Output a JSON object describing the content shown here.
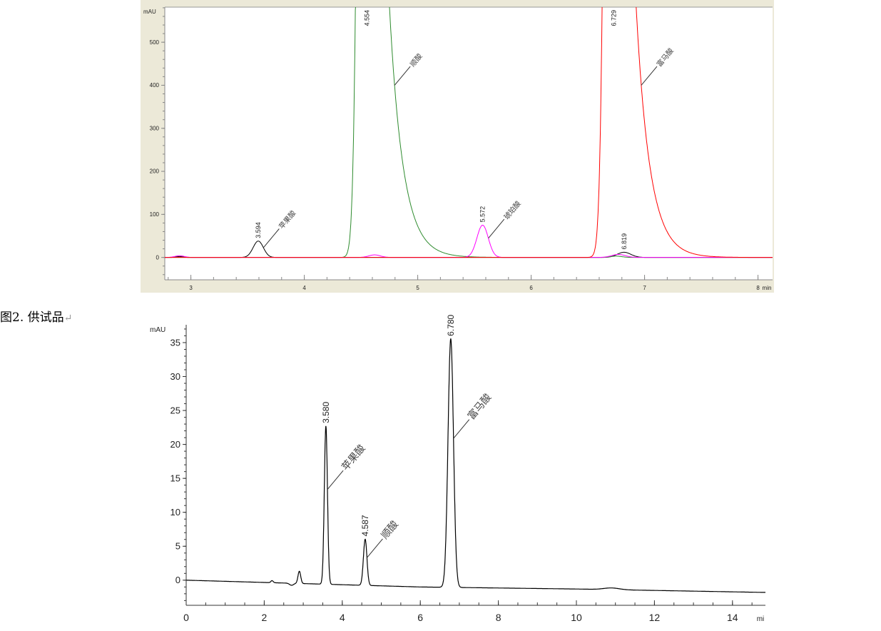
{
  "caption": {
    "text": "图2. 供试品",
    "mark": "↵"
  },
  "chart_data": [
    {
      "type": "line",
      "ylabel": "mAU",
      "xlabel": "min",
      "xlim": [
        2.77,
        8.13
      ],
      "ylim": [
        -52,
        582
      ],
      "xticks": [
        3,
        4,
        5,
        6,
        7,
        8
      ],
      "yticks": [
        0,
        100,
        200,
        300,
        400,
        500
      ],
      "grid": false,
      "background_frame": "#ece9d8",
      "series": [
        {
          "color": "#000000",
          "baseline": 0,
          "peaks": [
            {
              "rt": 2.9,
              "height": 2,
              "width": 0.03
            },
            {
              "rt": 3.594,
              "height": 38,
              "width": 0.045,
              "rt_label": "3.594",
              "name": "苹果酸"
            },
            {
              "rt": 6.819,
              "height": 12,
              "width": 0.06,
              "rt_label": "6.819"
            }
          ]
        },
        {
          "color": "#2e8b2e",
          "baseline": 0,
          "peaks": [
            {
              "rt": 4.554,
              "height": null,
              "width": 0.05,
              "tail": 0.12,
              "rt_label": "4.554",
              "name": "顺酸"
            },
            {
              "rt": 6.75,
              "height": 3,
              "width": 0.05
            }
          ]
        },
        {
          "color": "#ff00ff",
          "baseline": 0,
          "peaks": [
            {
              "rt": 2.9,
              "height": 4,
              "width": 0.04
            },
            {
              "rt": 4.62,
              "height": 6,
              "width": 0.05
            },
            {
              "rt": 5.572,
              "height": 75,
              "width": 0.05,
              "rt_label": "5.572",
              "name": "琥珀酸"
            },
            {
              "rt": 6.77,
              "height": 7,
              "width": 0.06
            }
          ]
        },
        {
          "color": "#ff0000",
          "baseline": 0,
          "peaks": [
            {
              "rt": 6.729,
              "height": null,
              "width": 0.05,
              "tail": 0.12,
              "rt_label": "6.729",
              "name": "富马酸"
            }
          ]
        }
      ]
    },
    {
      "type": "line",
      "ylabel": "mAU",
      "xlabel": "mi",
      "xlim": [
        0,
        14.85
      ],
      "ylim": [
        -3.7,
        37.6
      ],
      "xticks": [
        0,
        2,
        4,
        6,
        8,
        10,
        12,
        14
      ],
      "yticks": [
        0,
        5,
        10,
        15,
        20,
        25,
        30,
        35
      ],
      "grid": false,
      "series": [
        {
          "color": "#000000",
          "baseline": [
            [
              0,
              0
            ],
            [
              3,
              -0.5
            ],
            [
              6,
              -1.0
            ],
            [
              10,
              -1.3
            ],
            [
              14.8,
              -1.8
            ]
          ],
          "peaks": [
            {
              "rt": 2.2,
              "height": 0.3,
              "width": 0.03
            },
            {
              "rt": 2.7,
              "height": -0.3,
              "width": 0.05
            },
            {
              "rt": 2.9,
              "height": 1.8,
              "width": 0.035
            },
            {
              "rt": 3.58,
              "height": 23.3,
              "width": 0.04,
              "rt_label": "3.580",
              "name": "苹果酸"
            },
            {
              "rt": 4.587,
              "height": 6.8,
              "width": 0.045,
              "rt_label": "4.587",
              "name": "顺酸"
            },
            {
              "rt": 6.78,
              "height": 36.6,
              "width": 0.07,
              "rt_label": "6.780",
              "name": "富马酸"
            },
            {
              "rt": 10.9,
              "height": 0.25,
              "width": 0.2
            }
          ]
        }
      ]
    }
  ]
}
